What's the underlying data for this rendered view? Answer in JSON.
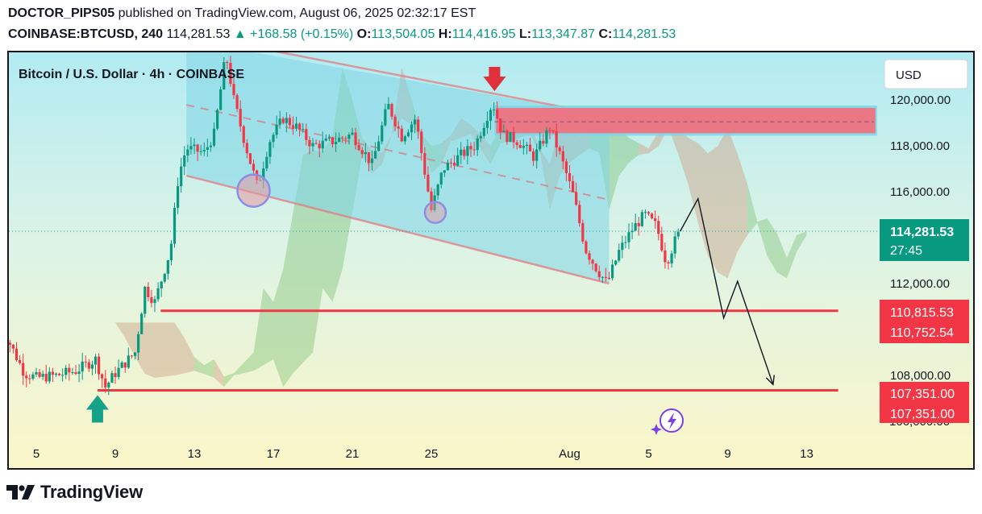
{
  "header": {
    "author": "DOCTOR_PIPS05",
    "published_text": "published on TradingView.com, August 06, 2025 02:32:17 EST",
    "symbol": "COINBASE:BTCUSD, 240",
    "last": "114,281.53",
    "change": "+168.58 (+0.15%)",
    "open_label": "O:",
    "open": "113,504.05",
    "high_label": "H:",
    "high": "114,416.95",
    "low_label": "L:",
    "low": "113,347.87",
    "close_label": "C:",
    "close": "114,281.53"
  },
  "chart": {
    "title": "Bitcoin / U.S. Dollar · 4h · COINBASE",
    "currency_button": "USD",
    "current_price_label": "114,281.53",
    "countdown": "27:45",
    "level_labels": [
      "110,815.53",
      "110,752.54",
      "107,351.00",
      "107,351.00"
    ],
    "partial_tick": "106,000.00"
  },
  "chart_data": {
    "type": "candlestick",
    "title": "Bitcoin / U.S. Dollar · 4h · COINBASE",
    "timeframe": "4h",
    "x_ticks": [
      "5",
      "9",
      "13",
      "17",
      "21",
      "25",
      "Aug",
      "5",
      "9",
      "13"
    ],
    "y_ticks": [
      120000,
      118000,
      116000,
      114000,
      112000,
      110000,
      108000
    ],
    "y_range": [
      105700,
      121500
    ],
    "grid": false,
    "price_points": [
      {
        "day": 3.0,
        "price": 110300
      },
      {
        "day": 3.6,
        "price": 109500
      },
      {
        "day": 4.4,
        "price": 108100
      },
      {
        "day": 5.0,
        "price": 107900
      },
      {
        "day": 6.0,
        "price": 108000
      },
      {
        "day": 7.0,
        "price": 108200
      },
      {
        "day": 8.0,
        "price": 108700
      },
      {
        "day": 8.5,
        "price": 107500
      },
      {
        "day": 9.0,
        "price": 108100
      },
      {
        "day": 10.0,
        "price": 109000
      },
      {
        "day": 10.5,
        "price": 111800
      },
      {
        "day": 11.0,
        "price": 111200
      },
      {
        "day": 11.8,
        "price": 113500
      },
      {
        "day": 12.2,
        "price": 116700
      },
      {
        "day": 12.6,
        "price": 117900
      },
      {
        "day": 13.5,
        "price": 117700
      },
      {
        "day": 14.0,
        "price": 118500
      },
      {
        "day": 14.6,
        "price": 122000
      },
      {
        "day": 15.0,
        "price": 120000
      },
      {
        "day": 15.6,
        "price": 118000
      },
      {
        "day": 16.2,
        "price": 116200
      },
      {
        "day": 16.8,
        "price": 118200
      },
      {
        "day": 17.5,
        "price": 119200
      },
      {
        "day": 18.2,
        "price": 118800
      },
      {
        "day": 19.0,
        "price": 118000
      },
      {
        "day": 20.0,
        "price": 118200
      },
      {
        "day": 21.0,
        "price": 118500
      },
      {
        "day": 22.0,
        "price": 117200
      },
      {
        "day": 22.8,
        "price": 119800
      },
      {
        "day": 23.5,
        "price": 118400
      },
      {
        "day": 24.2,
        "price": 119200
      },
      {
        "day": 25.0,
        "price": 115200
      },
      {
        "day": 25.6,
        "price": 117000
      },
      {
        "day": 26.5,
        "price": 117600
      },
      {
        "day": 27.2,
        "price": 118000
      },
      {
        "day": 28.1,
        "price": 119900
      },
      {
        "day": 28.6,
        "price": 118500
      },
      {
        "day": 29.4,
        "price": 118200
      },
      {
        "day": 30.2,
        "price": 117500
      },
      {
        "day": 31.0,
        "price": 118800
      },
      {
        "day": 31.6,
        "price": 117400
      },
      {
        "day": 32.2,
        "price": 115800
      },
      {
        "day": 32.8,
        "price": 113500
      },
      {
        "day": 33.4,
        "price": 112600
      },
      {
        "day": 33.9,
        "price": 112000
      },
      {
        "day": 34.5,
        "price": 113400
      },
      {
        "day": 35.2,
        "price": 114400
      },
      {
        "day": 35.8,
        "price": 115000
      },
      {
        "day": 36.4,
        "price": 114500
      },
      {
        "day": 36.9,
        "price": 112900
      },
      {
        "day": 37.3,
        "price": 113800
      },
      {
        "day": 37.6,
        "price": 114281.53
      }
    ],
    "annotations": {
      "current_price": 114281.53,
      "resistance_zone": [
        118550,
        119650
      ],
      "resistance_mid": 119050,
      "support_levels": [
        110815.53,
        110752.54,
        107351.0
      ],
      "channel_upper": [
        {
          "day": 16.0,
          "price": 122300
        },
        {
          "day": 34.0,
          "price": 119300
        }
      ],
      "channel_lower": [
        {
          "day": 12.6,
          "price": 116700
        },
        {
          "day": 34.0,
          "price": 112000
        }
      ],
      "projected_path": [
        {
          "day": 37.6,
          "price": 114281.53
        },
        {
          "day": 38.5,
          "price": 115700
        },
        {
          "day": 39.8,
          "price": 110500
        },
        {
          "day": 40.5,
          "price": 112100
        },
        {
          "day": 42.3,
          "price": 107600
        }
      ],
      "up_arrow_day": 8.1,
      "down_arrow_day": 28.2
    },
    "colors": {
      "up": "#089981",
      "down": "#f23645",
      "level": "#f23645",
      "price_label": "#089981",
      "resistance_zone": "#f26f7d",
      "channel": "#7fd6e6"
    }
  }
}
